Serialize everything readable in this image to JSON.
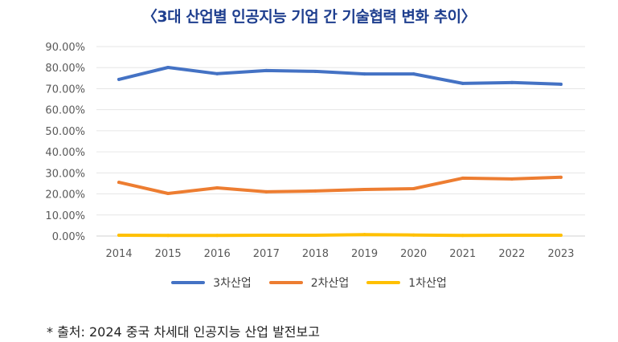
{
  "chart_data": {
    "type": "line",
    "title": "〈3대 산업별 인공지능 기업 간 기술협력 변화 추이〉",
    "xlabel": "",
    "ylabel": "",
    "x": [
      "2014",
      "2015",
      "2016",
      "2017",
      "2018",
      "2019",
      "2020",
      "2021",
      "2022",
      "2023"
    ],
    "ylim": [
      0,
      90
    ],
    "yticks": [
      "0.00%",
      "10.00%",
      "20.00%",
      "30.00%",
      "40.00%",
      "50.00%",
      "60.00%",
      "70.00%",
      "80.00%",
      "90.00%"
    ],
    "grid": true,
    "legend_position": "bottom",
    "series": [
      {
        "name": "3차산업",
        "color": "#4472c4",
        "values": [
          74.4,
          80.1,
          77.1,
          78.6,
          78.2,
          77.0,
          77.0,
          72.5,
          72.9,
          72.1
        ]
      },
      {
        "name": "2차산업",
        "color": "#ed7d31",
        "values": [
          25.5,
          20.2,
          22.9,
          21.0,
          21.4,
          22.1,
          22.5,
          27.5,
          27.1,
          27.9
        ]
      },
      {
        "name": "1차산업",
        "color": "#ffc000",
        "values": [
          0.4,
          0.3,
          0.3,
          0.4,
          0.4,
          0.7,
          0.5,
          0.3,
          0.4,
          0.4
        ]
      }
    ]
  },
  "source_note": "* 출처: 2024 중국 차세대 인공지능 산업 발전보고"
}
